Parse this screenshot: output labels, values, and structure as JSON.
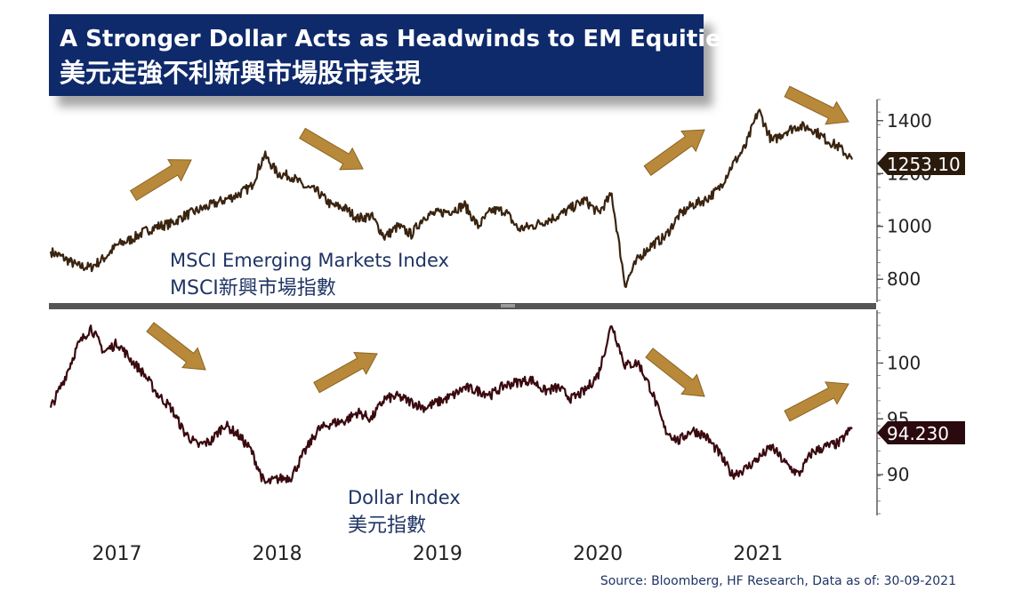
{
  "title": {
    "en": "A Stronger Dollar Acts as Headwinds to EM Equities",
    "zh": "美元走強不利新興市場股市表現"
  },
  "source": "Source: Bloomberg, HF Research, Data as of: 30-09-2021",
  "chart_data": [
    {
      "type": "line",
      "label_en": "MSCI Emerging Markets Index",
      "label_zh": "MSCI新興市場指數",
      "ylim": [
        720,
        1480
      ],
      "yticks": [
        800,
        1000,
        1200,
        1400
      ],
      "last_value_label": "1253.10",
      "color": "#3a2410",
      "x": [
        "2016-09",
        "2016-10",
        "2016-11",
        "2016-12",
        "2017-01",
        "2017-02",
        "2017-03",
        "2017-04",
        "2017-05",
        "2017-06",
        "2017-07",
        "2017-08",
        "2017-09",
        "2017-10",
        "2017-11",
        "2017-12",
        "2018-01",
        "2018-02",
        "2018-03",
        "2018-04",
        "2018-05",
        "2018-06",
        "2018-07",
        "2018-08",
        "2018-09",
        "2018-10",
        "2018-11",
        "2018-12",
        "2019-01",
        "2019-02",
        "2019-03",
        "2019-04",
        "2019-05",
        "2019-06",
        "2019-07",
        "2019-08",
        "2019-09",
        "2019-10",
        "2019-11",
        "2019-12",
        "2020-01",
        "2020-02",
        "2020-03",
        "2020-04",
        "2020-05",
        "2020-06",
        "2020-07",
        "2020-08",
        "2020-09",
        "2020-10",
        "2020-11",
        "2020-12",
        "2021-01",
        "2021-02",
        "2021-03",
        "2021-04",
        "2021-05",
        "2021-06",
        "2021-07",
        "2021-08",
        "2021-09"
      ],
      "values": [
        905,
        880,
        850,
        845,
        880,
        930,
        950,
        980,
        1000,
        1010,
        1040,
        1060,
        1080,
        1100,
        1120,
        1150,
        1270,
        1200,
        1190,
        1150,
        1130,
        1080,
        1070,
        1030,
        1040,
        960,
        1000,
        970,
        1040,
        1050,
        1060,
        1080,
        1000,
        1060,
        1060,
        990,
        1000,
        1020,
        1040,
        1070,
        1100,
        1050,
        1120,
        780,
        880,
        930,
        960,
        1040,
        1080,
        1100,
        1140,
        1230,
        1300,
        1440,
        1320,
        1360,
        1380,
        1370,
        1330,
        1300,
        1253
      ]
    },
    {
      "type": "line",
      "label_en": "Dollar Index",
      "label_zh": "美元指數",
      "ylim": [
        86.5,
        104.5
      ],
      "yticks": [
        90,
        95,
        100
      ],
      "last_value_label": "94.230",
      "color": "#3a0a10",
      "x": [
        "2016-09",
        "2016-10",
        "2016-11",
        "2016-12",
        "2017-01",
        "2017-02",
        "2017-03",
        "2017-04",
        "2017-05",
        "2017-06",
        "2017-07",
        "2017-08",
        "2017-09",
        "2017-10",
        "2017-11",
        "2017-12",
        "2018-01",
        "2018-02",
        "2018-03",
        "2018-04",
        "2018-05",
        "2018-06",
        "2018-07",
        "2018-08",
        "2018-09",
        "2018-10",
        "2018-11",
        "2018-12",
        "2019-01",
        "2019-02",
        "2019-03",
        "2019-04",
        "2019-05",
        "2019-06",
        "2019-07",
        "2019-08",
        "2019-09",
        "2019-10",
        "2019-11",
        "2019-12",
        "2020-01",
        "2020-02",
        "2020-03",
        "2020-04",
        "2020-05",
        "2020-06",
        "2020-07",
        "2020-08",
        "2020-09",
        "2020-10",
        "2020-11",
        "2020-12",
        "2021-01",
        "2021-02",
        "2021-03",
        "2021-04",
        "2021-05",
        "2021-06",
        "2021-07",
        "2021-08",
        "2021-09"
      ],
      "values": [
        96.0,
        98.5,
        101.5,
        103.2,
        101.0,
        101.8,
        100.3,
        99.0,
        97.2,
        96.0,
        93.8,
        92.6,
        93.0,
        94.5,
        93.6,
        92.2,
        89.2,
        89.6,
        89.8,
        92.0,
        94.0,
        94.6,
        94.8,
        95.6,
        95.0,
        96.8,
        97.0,
        96.5,
        96.0,
        96.5,
        97.0,
        97.8,
        97.5,
        97.2,
        98.0,
        98.3,
        98.5,
        97.5,
        97.8,
        96.8,
        97.5,
        99.0,
        103.5,
        99.8,
        100.0,
        97.5,
        94.0,
        93.0,
        94.0,
        93.5,
        92.0,
        90.0,
        90.5,
        91.5,
        92.5,
        91.0,
        90.0,
        92.0,
        92.5,
        92.8,
        94.23
      ]
    }
  ],
  "x_tick_labels": [
    "2017",
    "2018",
    "2019",
    "2020",
    "2021"
  ],
  "arrow_color": "#b8893a"
}
